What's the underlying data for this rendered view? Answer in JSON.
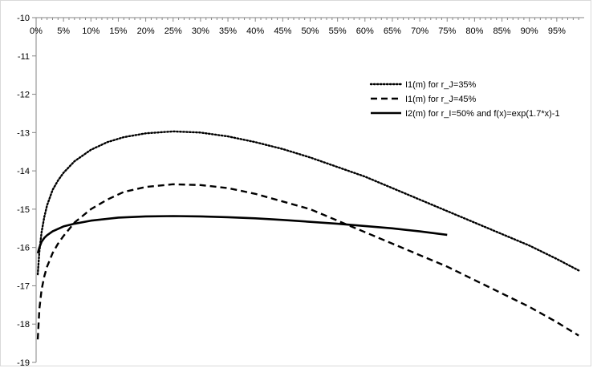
{
  "chart_data": {
    "type": "line",
    "title": "",
    "xlabel": "",
    "ylabel": "",
    "xlim": [
      0,
      100
    ],
    "ylim": [
      -19,
      -10
    ],
    "x_axis_position": "top",
    "x_tick_labels": [
      "0%",
      "5%",
      "10%",
      "15%",
      "20%",
      "25%",
      "30%",
      "35%",
      "40%",
      "45%",
      "50%",
      "55%",
      "60%",
      "65%",
      "70%",
      "75%",
      "80%",
      "85%",
      "90%",
      "95%"
    ],
    "x_ticks": [
      0,
      5,
      10,
      15,
      20,
      25,
      30,
      35,
      40,
      45,
      50,
      55,
      60,
      65,
      70,
      75,
      80,
      85,
      90,
      95
    ],
    "y_tick_labels": [
      "-10",
      "-11",
      "-12",
      "-13",
      "-14",
      "-15",
      "-16",
      "-17",
      "-18",
      "-19"
    ],
    "y_ticks": [
      -10,
      -11,
      -12,
      -13,
      -14,
      -15,
      -16,
      -17,
      -18,
      -19
    ],
    "grid": false,
    "legend_position": "top-right",
    "series": [
      {
        "name": "I1(m) for r_J=35%",
        "style": "dotted",
        "color": "#000000",
        "x": [
          0.3,
          0.6,
          1,
          1.5,
          2,
          3,
          4,
          5,
          7,
          10,
          13,
          16,
          20,
          25,
          30,
          35,
          40,
          45,
          50,
          55,
          60,
          65,
          70,
          75,
          80,
          85,
          90,
          95,
          99
        ],
        "y": [
          -16.7,
          -16.1,
          -15.6,
          -15.2,
          -14.9,
          -14.5,
          -14.25,
          -14.05,
          -13.75,
          -13.45,
          -13.25,
          -13.12,
          -13.02,
          -12.97,
          -13.0,
          -13.1,
          -13.25,
          -13.43,
          -13.65,
          -13.9,
          -14.15,
          -14.45,
          -14.75,
          -15.05,
          -15.35,
          -15.65,
          -15.95,
          -16.3,
          -16.6
        ]
      },
      {
        "name": "I1(m) for r_J=45%",
        "style": "dashed",
        "color": "#000000",
        "x": [
          0.3,
          0.6,
          1,
          1.5,
          2,
          3,
          4,
          5,
          7,
          10,
          13,
          16,
          20,
          25,
          30,
          35,
          40,
          45,
          50,
          55,
          60,
          65,
          70,
          75,
          80,
          85,
          90,
          95,
          99
        ],
        "y": [
          -18.4,
          -17.6,
          -17.1,
          -16.75,
          -16.5,
          -16.15,
          -15.9,
          -15.7,
          -15.35,
          -15.0,
          -14.75,
          -14.55,
          -14.42,
          -14.35,
          -14.37,
          -14.45,
          -14.6,
          -14.8,
          -15.0,
          -15.3,
          -15.6,
          -15.9,
          -16.2,
          -16.5,
          -16.85,
          -17.2,
          -17.55,
          -17.95,
          -18.3
        ]
      },
      {
        "name": "I2(m) for r_I=50% and f(x)=exp(1.7*x)-1",
        "style": "solid",
        "color": "#000000",
        "x": [
          0.3,
          0.6,
          1,
          1.5,
          2,
          3,
          5,
          7,
          10,
          15,
          20,
          25,
          30,
          35,
          40,
          45,
          50,
          55,
          60,
          65,
          70,
          75
        ],
        "y": [
          -16.15,
          -16.0,
          -15.85,
          -15.75,
          -15.68,
          -15.58,
          -15.45,
          -15.38,
          -15.3,
          -15.22,
          -15.19,
          -15.18,
          -15.19,
          -15.21,
          -15.24,
          -15.28,
          -15.33,
          -15.38,
          -15.44,
          -15.5,
          -15.58,
          -15.67
        ]
      }
    ]
  }
}
